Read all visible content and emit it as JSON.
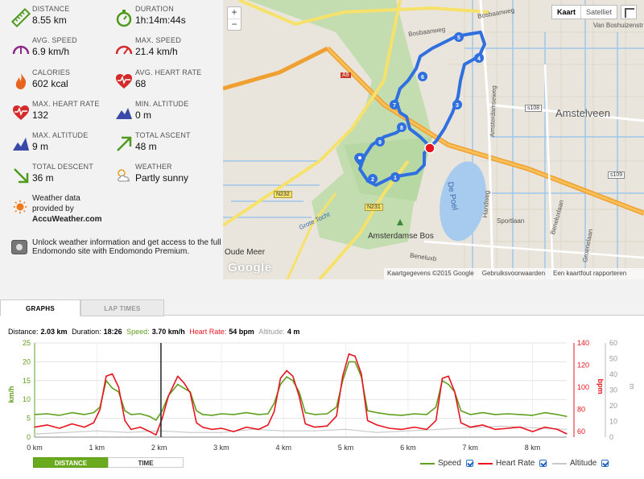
{
  "stats": {
    "distance": {
      "label": "DISTANCE",
      "value": "8.55 km"
    },
    "duration": {
      "label": "DURATION",
      "value": "1h:14m:44s"
    },
    "avg_speed": {
      "label": "AVG. SPEED",
      "value": "6.9 km/h"
    },
    "max_speed": {
      "label": "MAX. SPEED",
      "value": "21.4 km/h"
    },
    "calories": {
      "label": "CALORIES",
      "value": "602 kcal"
    },
    "avg_heart_rate": {
      "label": "AVG. HEART RATE",
      "value": "68"
    },
    "max_heart_rate": {
      "label": "MAX. HEART RATE",
      "value": "132"
    },
    "min_altitude": {
      "label": "MIN. ALTITUDE",
      "value": "0 m"
    },
    "max_altitude": {
      "label": "MAX. ALTITUDE",
      "value": "9 m"
    },
    "total_ascent": {
      "label": "TOTAL ASCENT",
      "value": "48 m"
    },
    "total_descent": {
      "label": "TOTAL DESCENT",
      "value": "36 m"
    },
    "weather": {
      "label": "WEATHER",
      "value": "Partly sunny"
    }
  },
  "weather_source": {
    "line1": "Weather data",
    "line2": "provided by",
    "line3": "AccuWeather.com"
  },
  "unlock_text": "Unlock weather information and get access to the full Endomondo site with Endomondo Premium.",
  "map": {
    "zoom_in": "+",
    "zoom_out": "−",
    "type_map": "Kaart",
    "type_satellite": "Satelliet",
    "labels": {
      "amstelveen": "Amstelveen",
      "amsterdamse_bos": "Amsterdamse Bos",
      "de_poel": "De Poel",
      "oude_meer": "Oude Meer",
      "bosbaanweg": "Bosbaanweg",
      "bosbaanweg2": "Bosbaanweg",
      "van_boshuizen": "Van Boshuizenstr",
      "a9": "A9",
      "n232": "N232",
      "n231": "N231",
      "s108": "s108",
      "s109": "s109",
      "handweg": "Handweg",
      "sportlaan": "Sportlaan",
      "beneluxlaan": "Beneluxlaan",
      "groenelaan": "Groenelaan",
      "amsterdamseweg": "Amsterdamseweg",
      "grote_tocht": "Grote Tocht",
      "beneluxb": "Beneluxb"
    },
    "markers": [
      "1",
      "2",
      "3",
      "4",
      "5",
      "6",
      "7",
      "8",
      "9"
    ],
    "google": "Google",
    "footer": [
      "Kaartgegevens ©2015 Google",
      "Gebruiksvoorwaarden",
      "Een kaartfout rapporteren"
    ]
  },
  "tabs": {
    "graphs": "GRAPHS",
    "lap_times": "LAP TIMES"
  },
  "readout": {
    "distance_label": "Distance:",
    "distance_value": "2.03 km",
    "duration_label": "Duration:",
    "duration_value": "18:26",
    "speed_label": "Speed:",
    "speed_value": "3.70 km/h",
    "hr_label": "Heart Rate:",
    "hr_value": "54 bpm",
    "alt_label": "Altitude:",
    "alt_value": "4 m"
  },
  "buttons": {
    "distance": "DISTANCE",
    "time": "TIME"
  },
  "legend": {
    "speed": "Speed",
    "heart_rate": "Heart Rate",
    "altitude": "Altitude"
  },
  "colors": {
    "speed": "#5fa01e",
    "heart_rate": "#e8141e",
    "altitude": "#c8c8c8",
    "route": "#2f6fe0",
    "accent": "#6aaa1f"
  },
  "chart_data": {
    "type": "line",
    "xlabel": "",
    "x_ticks": [
      "0 km",
      "1 km",
      "2 km",
      "3 km",
      "4 km",
      "5 km",
      "6 km",
      "7 km",
      "8 km"
    ],
    "y_left_label": "km/h",
    "y_left_ticks": [
      "0",
      "5",
      "10",
      "15",
      "20",
      "25"
    ],
    "y_left_range": [
      0,
      25
    ],
    "y_right1_label": "bpm",
    "y_right1_ticks": [
      "60",
      "80",
      "100",
      "120",
      "140"
    ],
    "y_right1_range": [
      55,
      140
    ],
    "y_right2_label": "m",
    "y_right2_ticks": [
      "0",
      "10",
      "20",
      "30",
      "40",
      "50",
      "60"
    ],
    "y_right2_range": [
      0,
      60
    ],
    "x_range": [
      0,
      8.55
    ],
    "cursor_x": 2.03,
    "grid": true,
    "series": [
      {
        "name": "Speed",
        "axis": "left",
        "x": [
          0,
          0.2,
          0.4,
          0.6,
          0.8,
          0.95,
          1.05,
          1.15,
          1.25,
          1.35,
          1.45,
          1.55,
          1.7,
          1.85,
          1.95,
          2.05,
          2.15,
          2.3,
          2.4,
          2.5,
          2.6,
          2.7,
          2.85,
          3.0,
          3.2,
          3.4,
          3.6,
          3.75,
          3.85,
          3.95,
          4.05,
          4.15,
          4.25,
          4.35,
          4.5,
          4.7,
          4.85,
          4.95,
          5.05,
          5.15,
          5.25,
          5.35,
          5.5,
          5.7,
          5.9,
          6.1,
          6.3,
          6.45,
          6.55,
          6.65,
          6.75,
          6.85,
          7.0,
          7.2,
          7.4,
          7.6,
          7.8,
          8.0,
          8.2,
          8.4,
          8.55
        ],
        "y": [
          6,
          6.2,
          5.8,
          6.5,
          6.0,
          6.5,
          8,
          15,
          13,
          12,
          7,
          6,
          6.2,
          5.5,
          4.5,
          7,
          11,
          14,
          13,
          12,
          7,
          6,
          5.8,
          6.2,
          6,
          6.5,
          6,
          6.2,
          9,
          14,
          16,
          15,
          12,
          6.5,
          6,
          6.2,
          8,
          15,
          20,
          20,
          16,
          7,
          6.5,
          6,
          5.8,
          6.2,
          6,
          8,
          15,
          14,
          12,
          7,
          6,
          6.5,
          6,
          6.2,
          6,
          5.8,
          6.5,
          6,
          5.5
        ]
      },
      {
        "name": "Heart Rate",
        "axis": "right1",
        "x": [
          0,
          0.2,
          0.4,
          0.6,
          0.8,
          0.95,
          1.05,
          1.15,
          1.25,
          1.35,
          1.45,
          1.55,
          1.7,
          1.85,
          1.95,
          2.05,
          2.15,
          2.3,
          2.4,
          2.5,
          2.6,
          2.7,
          2.85,
          3.0,
          3.2,
          3.4,
          3.6,
          3.75,
          3.85,
          3.95,
          4.05,
          4.15,
          4.25,
          4.35,
          4.5,
          4.7,
          4.85,
          4.95,
          5.05,
          5.15,
          5.25,
          5.35,
          5.5,
          5.7,
          5.9,
          6.1,
          6.3,
          6.45,
          6.55,
          6.65,
          6.75,
          6.85,
          7.0,
          7.2,
          7.4,
          7.6,
          7.8,
          8.0,
          8.2,
          8.4,
          8.55
        ],
        "y": [
          64,
          66,
          63,
          67,
          64,
          68,
          80,
          110,
          112,
          100,
          70,
          62,
          64,
          60,
          57,
          72,
          92,
          110,
          104,
          95,
          68,
          64,
          62,
          63,
          60,
          64,
          62,
          66,
          78,
          108,
          115,
          110,
          92,
          67,
          64,
          65,
          74,
          110,
          130,
          128,
          112,
          70,
          66,
          63,
          62,
          64,
          62,
          70,
          108,
          110,
          96,
          68,
          64,
          66,
          62,
          63,
          64,
          60,
          64,
          62,
          58
        ]
      },
      {
        "name": "Altitude",
        "axis": "right2",
        "x": [
          0,
          0.5,
          1.0,
          1.5,
          2.0,
          2.5,
          3.0,
          3.5,
          4.0,
          4.5,
          5.0,
          5.5,
          6.0,
          6.5,
          7.0,
          7.5,
          8.0,
          8.55
        ],
        "y": [
          2,
          3,
          4,
          3,
          4,
          3,
          3,
          5,
          4,
          4,
          5,
          3,
          4,
          5,
          6,
          7,
          6,
          5
        ]
      }
    ]
  }
}
